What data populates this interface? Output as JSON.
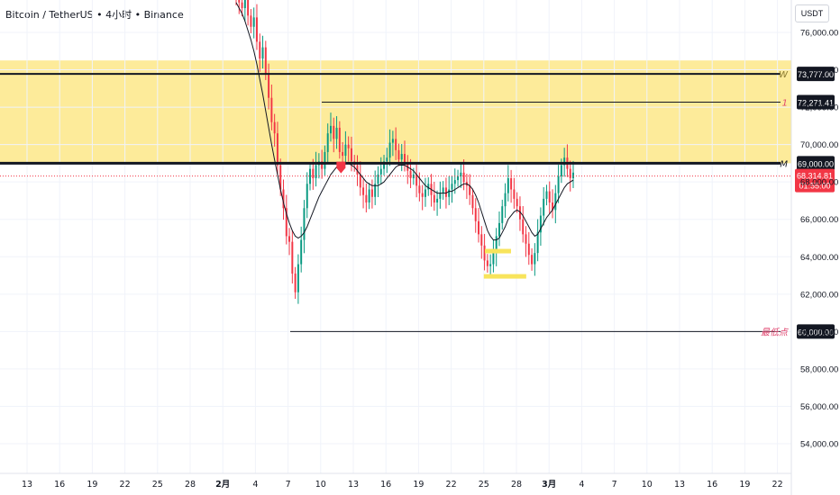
{
  "header": {
    "title": "Bitcoin / TetherUS • 4小时 • Binance",
    "currency": "USDT"
  },
  "chart_data": {
    "type": "candlestick",
    "y_range": [
      53000,
      78000
    ],
    "y_ticks": [
      54000,
      56000,
      58000,
      60000,
      62000,
      64000,
      66000,
      68000,
      70000,
      72000,
      74000,
      76000
    ],
    "y_tick_labels": [
      "54,000.00",
      "56,000.00",
      "58,000.00",
      "60,000.00",
      "62,000.00",
      "64,000.00",
      "66,000.00",
      "68,000.00",
      "70,000.00",
      "72,000.00",
      "74,000.00",
      "76,000.00"
    ],
    "x_ticks": [
      "13",
      "16",
      "19",
      "22",
      "25",
      "28",
      "2月",
      "4",
      "7",
      "10",
      "13",
      "16",
      "19",
      "22",
      "25",
      "28",
      "3月",
      "4",
      "7",
      "10",
      "13",
      "16",
      "19",
      "22"
    ],
    "bold_x_ticks": [
      "2月",
      "3月"
    ],
    "zone": {
      "from": 69000,
      "to": 74500,
      "color": "#fdeb9a"
    },
    "levels": [
      {
        "price": 73777,
        "label": "W",
        "value_label": "73,777.00",
        "color": "#131722",
        "tag_color": "#131722",
        "width": 2
      },
      {
        "price": 72271.41,
        "label": "1",
        "value_label": "72,271.41",
        "color": "#131722",
        "tag_color": "#131722",
        "width": 1
      },
      {
        "price": 69000,
        "label": "M",
        "value_label": "69,000.00",
        "color": "#131722",
        "tag_color": "#131722",
        "width": 3
      },
      {
        "price": 60000,
        "label": "最低点",
        "value_label": "60,000.00",
        "color": "#131722",
        "tag_color": "#131722",
        "width": 1
      }
    ],
    "current_price": {
      "value": 68314.81,
      "label": "68,314.81",
      "countdown": "01:55:00",
      "color": "#f23645"
    },
    "highlights": [
      {
        "price": 64300,
        "from_day": 25.1,
        "to_day": 27.5,
        "color": "#f8e45c"
      },
      {
        "price": 62950,
        "from_day": 25.0,
        "to_day": 28.9,
        "color": "#f8e45c"
      }
    ],
    "marker": {
      "type": "down-arrow",
      "day": 12.2,
      "price": 68800,
      "color": "#f23645"
    },
    "series": [
      {
        "name": "",
        "kind": "ohlc",
        "note": "4H candles, values estimated from gridlines",
        "close": [
          77800,
          77600,
          77300,
          77900,
          76900,
          76300,
          76800,
          75500,
          74600,
          75200,
          73800,
          72500,
          71200,
          70600,
          68900,
          67600,
          66600,
          65100,
          64800,
          63100,
          62100,
          63600,
          64900,
          66600,
          67900,
          68700,
          68200,
          68900,
          69100,
          68700,
          69600,
          70600,
          71000,
          70300,
          70900,
          69600,
          69400,
          70000,
          69800,
          69100,
          68900,
          68400,
          67700,
          67300,
          66900,
          67600,
          67200,
          67900,
          68400,
          68700,
          69100,
          69300,
          70100,
          70300,
          69700,
          69200,
          69500,
          69000,
          68600,
          68200,
          68400,
          67800,
          67400,
          67200,
          67600,
          67900,
          67300,
          66900,
          67100,
          67400,
          67700,
          67200,
          67600,
          67900,
          68100,
          68300,
          68500,
          68000,
          67800,
          67300,
          66600,
          65900,
          65200,
          64600,
          63800,
          63500,
          63600,
          64200,
          65100,
          65800,
          66700,
          67400,
          68200,
          67600,
          67100,
          66700,
          66000,
          65200,
          64700,
          64100,
          63600,
          64200,
          65300,
          66200,
          67100,
          67500,
          66900,
          66500,
          67400,
          68300,
          68900,
          69300,
          68700,
          68200,
          68500
        ],
        "ma": [
          77600,
          77300,
          77000,
          76600,
          76100,
          75600,
          75000,
          74300,
          73500,
          72700,
          71800,
          70900,
          70000,
          69200,
          68400,
          67600,
          66900,
          66300,
          65800,
          65400,
          65100,
          65000,
          65100,
          65300,
          65600,
          66000,
          66400,
          66800,
          67200,
          67500,
          67800,
          68100,
          68400,
          68600,
          68800,
          68900,
          69000,
          69000,
          69000,
          68900,
          68800,
          68600,
          68400,
          68200,
          68000,
          67900,
          67800,
          67800,
          67800,
          67900,
          68000,
          68200,
          68400,
          68600,
          68800,
          68900,
          68900,
          68900,
          68800,
          68700,
          68600,
          68400,
          68200,
          68000,
          67800,
          67700,
          67600,
          67500,
          67400,
          67400,
          67400,
          67400,
          67500,
          67500,
          67600,
          67700,
          67800,
          67900,
          67900,
          67800,
          67600,
          67300,
          66900,
          66400,
          65900,
          65400,
          65100,
          64900,
          64900,
          65000,
          65300,
          65600,
          66000,
          66200,
          66400,
          66500,
          66400,
          66200,
          65900,
          65600,
          65300,
          65100,
          65200,
          65500,
          65800,
          66100,
          66300,
          66500,
          66800,
          67100,
          67400,
          67700,
          67900,
          68000,
          68100
        ]
      }
    ]
  }
}
